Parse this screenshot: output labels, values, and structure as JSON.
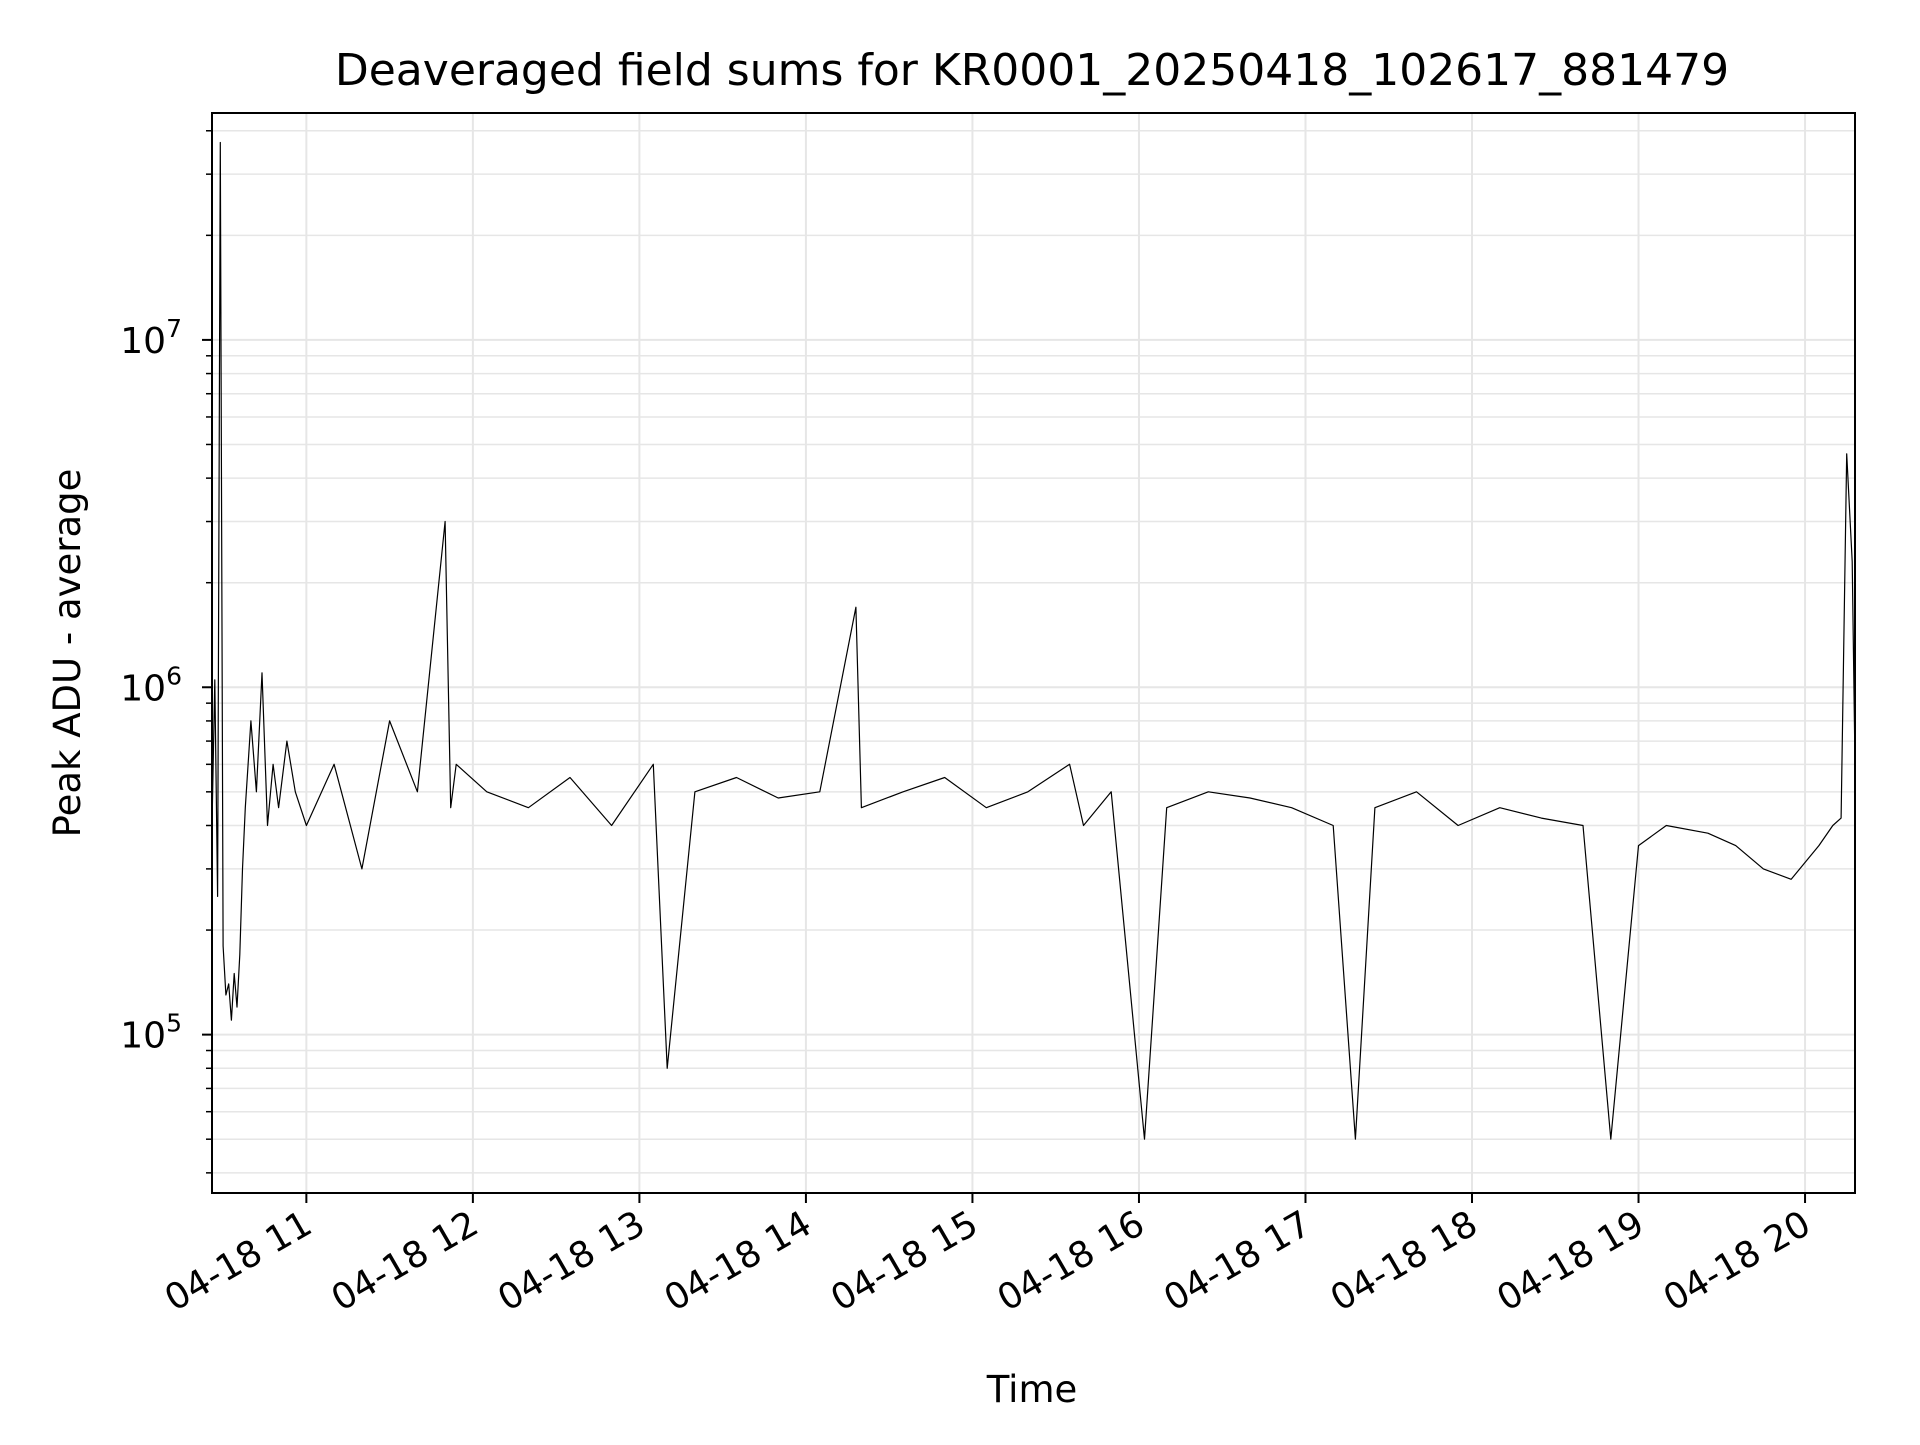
{
  "chart_data": {
    "type": "line",
    "title": "Deaveraged field sums for KR0001_20250418_102617_881479",
    "xlabel": "Time",
    "ylabel": "Peak ADU - average",
    "yscale": "log",
    "ylim": [
      35000,
      45000000
    ],
    "xlim": [
      "2025-04-18 10:26",
      "2025-04-18 20:18"
    ],
    "grid": true,
    "line_color": "#000000",
    "grid_color": "#e6e6e6",
    "x_ticks": [
      {
        "value": "2025-04-18 11:00",
        "label": "04-18 11"
      },
      {
        "value": "2025-04-18 12:00",
        "label": "04-18 12"
      },
      {
        "value": "2025-04-18 13:00",
        "label": "04-18 13"
      },
      {
        "value": "2025-04-18 14:00",
        "label": "04-18 14"
      },
      {
        "value": "2025-04-18 15:00",
        "label": "04-18 15"
      },
      {
        "value": "2025-04-18 16:00",
        "label": "04-18 16"
      },
      {
        "value": "2025-04-18 17:00",
        "label": "04-18 17"
      },
      {
        "value": "2025-04-18 18:00",
        "label": "04-18 18"
      },
      {
        "value": "2025-04-18 19:00",
        "label": "04-18 19"
      },
      {
        "value": "2025-04-18 20:00",
        "label": "04-18 20"
      }
    ],
    "y_ticks": [
      {
        "value": 100000,
        "base": "10",
        "exp": "5"
      },
      {
        "value": 1000000,
        "base": "10",
        "exp": "6"
      },
      {
        "value": 10000000,
        "base": "10",
        "exp": "7"
      }
    ],
    "series": [
      {
        "x": [
          "2025-04-18 10:26",
          "2025-04-18 10:27",
          "2025-04-18 10:28",
          "2025-04-18 10:29",
          "2025-04-18 10:30",
          "2025-04-18 10:31",
          "2025-04-18 10:32",
          "2025-04-18 10:33",
          "2025-04-18 10:34",
          "2025-04-18 10:35",
          "2025-04-18 10:36",
          "2025-04-18 10:37",
          "2025-04-18 10:38",
          "2025-04-18 10:40",
          "2025-04-18 10:42",
          "2025-04-18 10:44",
          "2025-04-18 10:46",
          "2025-04-18 10:48",
          "2025-04-18 10:50",
          "2025-04-18 10:53",
          "2025-04-18 10:56",
          "2025-04-18 11:00",
          "2025-04-18 11:10",
          "2025-04-18 11:20",
          "2025-04-18 11:30",
          "2025-04-18 11:40",
          "2025-04-18 11:50",
          "2025-04-18 11:52",
          "2025-04-18 11:54",
          "2025-04-18 12:05",
          "2025-04-18 12:20",
          "2025-04-18 12:35",
          "2025-04-18 12:50",
          "2025-04-18 13:05",
          "2025-04-18 13:10",
          "2025-04-18 13:20",
          "2025-04-18 13:35",
          "2025-04-18 13:50",
          "2025-04-18 14:05",
          "2025-04-18 14:18",
          "2025-04-18 14:20",
          "2025-04-18 14:35",
          "2025-04-18 14:50",
          "2025-04-18 15:05",
          "2025-04-18 15:20",
          "2025-04-18 15:35",
          "2025-04-18 15:40",
          "2025-04-18 15:50",
          "2025-04-18 16:02",
          "2025-04-18 16:10",
          "2025-04-18 16:25",
          "2025-04-18 16:40",
          "2025-04-18 16:55",
          "2025-04-18 17:10",
          "2025-04-18 17:18",
          "2025-04-18 17:25",
          "2025-04-18 17:40",
          "2025-04-18 17:55",
          "2025-04-18 18:10",
          "2025-04-18 18:25",
          "2025-04-18 18:40",
          "2025-04-18 18:50",
          "2025-04-18 19:00",
          "2025-04-18 19:10",
          "2025-04-18 19:25",
          "2025-04-18 19:35",
          "2025-04-18 19:45",
          "2025-04-18 19:55",
          "2025-04-18 20:05",
          "2025-04-18 20:10",
          "2025-04-18 20:13",
          "2025-04-18 20:15",
          "2025-04-18 20:17",
          "2025-04-18 20:18"
        ],
        "y": [
          400000,
          1050000,
          250000,
          37000000,
          180000,
          130000,
          140000,
          110000,
          150000,
          120000,
          170000,
          300000,
          450000,
          800000,
          500000,
          1100000,
          400000,
          600000,
          450000,
          700000,
          500000,
          400000,
          600000,
          300000,
          800000,
          500000,
          3000000,
          450000,
          600000,
          500000,
          450000,
          550000,
          400000,
          600000,
          80000,
          500000,
          550000,
          480000,
          500000,
          1700000,
          450000,
          500000,
          550000,
          450000,
          500000,
          600000,
          400000,
          500000,
          50000,
          450000,
          500000,
          480000,
          450000,
          400000,
          50000,
          450000,
          500000,
          400000,
          450000,
          420000,
          400000,
          50000,
          350000,
          400000,
          380000,
          350000,
          300000,
          280000,
          350000,
          400000,
          420000,
          4700000,
          2300000,
          600000
        ]
      }
    ]
  }
}
